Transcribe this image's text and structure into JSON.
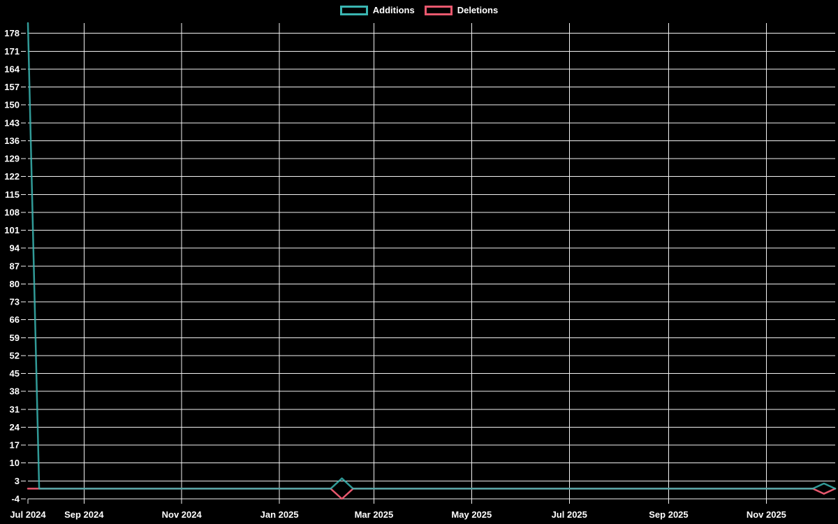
{
  "page": {
    "background": "#000000"
  },
  "legend": {
    "items": [
      {
        "label": "Additions",
        "color": "#3ab5b1"
      },
      {
        "label": "Deletions",
        "color": "#e9586e"
      }
    ]
  },
  "chart_data": {
    "type": "line",
    "title": "",
    "legend_position": "top",
    "grid": true,
    "grid_color": "#f2f2f2",
    "text_color": "#ffffff",
    "background_color": "#000000",
    "x_axis": {
      "start_date": "2024-07-28",
      "end_date": "2025-12-14",
      "ticks": [
        {
          "label": "Jul 2024",
          "date": "2024-07-28",
          "gridline": false
        },
        {
          "label": "Sep 2024",
          "date": "2024-09-01"
        },
        {
          "label": "Nov 2024",
          "date": "2024-11-01"
        },
        {
          "label": "Jan 2025",
          "date": "2025-01-01"
        },
        {
          "label": "Mar 2025",
          "date": "2025-03-01"
        },
        {
          "label": "May 2025",
          "date": "2025-05-01"
        },
        {
          "label": "Jul 2025",
          "date": "2025-07-01"
        },
        {
          "label": "Sep 2025",
          "date": "2025-09-01"
        },
        {
          "label": "Nov 2025",
          "date": "2025-11-01"
        }
      ]
    },
    "y_axis": {
      "range": [
        -4,
        182
      ],
      "ticks": [
        178,
        171,
        164,
        157,
        150,
        143,
        136,
        129,
        122,
        115,
        108,
        101,
        94,
        87,
        80,
        73,
        66,
        59,
        52,
        45,
        38,
        31,
        24,
        17,
        10,
        3,
        -4
      ]
    },
    "series": [
      {
        "name": "Additions",
        "color": "#3ab5b1",
        "points": [
          {
            "date": "2024-07-28",
            "value": 182
          },
          {
            "date": "2024-08-04",
            "value": 0
          },
          {
            "date": "2025-02-02",
            "value": 0
          },
          {
            "date": "2025-02-09",
            "value": 4
          },
          {
            "date": "2025-02-16",
            "value": 0
          },
          {
            "date": "2025-11-30",
            "value": 0
          },
          {
            "date": "2025-12-07",
            "value": 2
          },
          {
            "date": "2025-12-14",
            "value": 0
          }
        ]
      },
      {
        "name": "Deletions",
        "color": "#e9586e",
        "points": [
          {
            "date": "2024-07-28",
            "value": 0
          },
          {
            "date": "2025-02-02",
            "value": 0
          },
          {
            "date": "2025-02-09",
            "value": -4
          },
          {
            "date": "2025-02-16",
            "value": 0
          },
          {
            "date": "2025-11-30",
            "value": 0
          },
          {
            "date": "2025-12-07",
            "value": -2
          },
          {
            "date": "2025-12-14",
            "value": 0
          }
        ]
      }
    ]
  }
}
